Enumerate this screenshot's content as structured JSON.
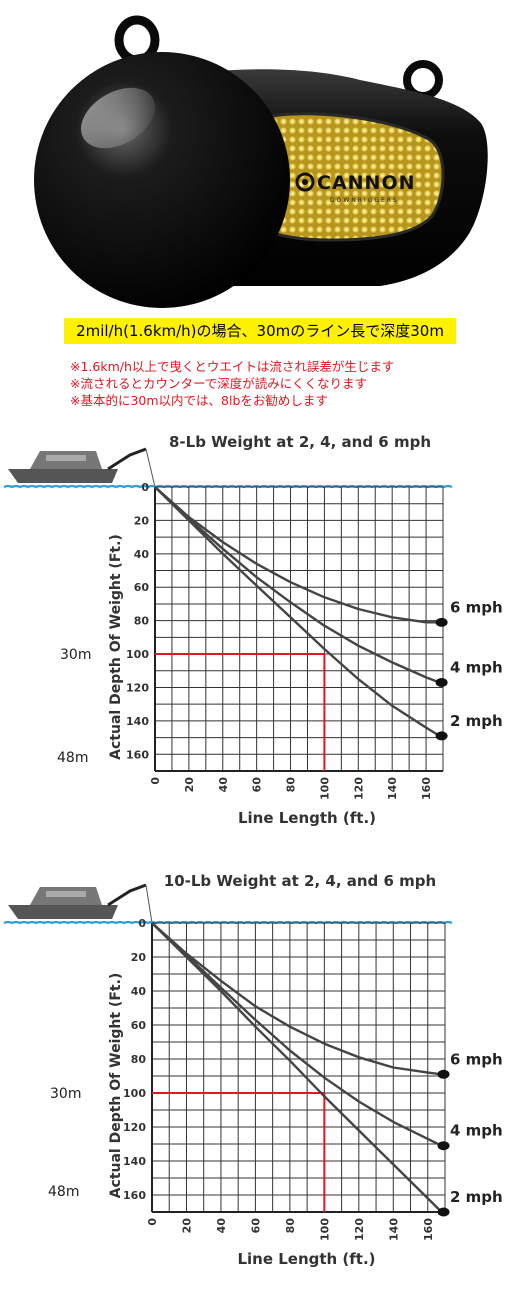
{
  "product": {
    "brand_logo": "CANNON",
    "brand_sub": "DOWNRIGGERS",
    "image_icon": "cannonball-weight-icon"
  },
  "caption": "2mil/h(1.6km/h)の場合、30mのライン長で深度30m",
  "notes": [
    "※1.6km/h以上で曳くとウエイトは流され誤差が生じます",
    "※流されるとカウンターで深度が読みにくくなります",
    "※基本的に30m以内では、8lbをお勧めします"
  ],
  "colors": {
    "caption_bg": "#fff200",
    "notes_text": "#e8141f",
    "water_line": "#2b9fd8",
    "reference_line": "#e8141f",
    "curve": "#444444",
    "grid": "#333333"
  },
  "chart_data": [
    {
      "type": "line",
      "title": "8-Lb Weight at 2, 4, and 6 mph",
      "xlabel": "Line Length (ft.)",
      "ylabel": "Actual Depth Of Weight (Ft.)",
      "xlim": [
        0,
        170
      ],
      "ylim": [
        0,
        170
      ],
      "x_ticks": [
        "0",
        "20",
        "40",
        "60",
        "80",
        "100",
        "120",
        "140",
        "160"
      ],
      "y_ticks": [
        "0",
        "20",
        "40",
        "60",
        "80",
        "100",
        "120",
        "140",
        "160"
      ],
      "y_inverted": true,
      "grid": true,
      "series": [
        {
          "name": "6 mph",
          "x": [
            0,
            20,
            40,
            60,
            80,
            100,
            120,
            140,
            160,
            168
          ],
          "y": [
            0,
            18,
            33,
            46,
            57,
            66,
            73,
            78,
            81,
            81
          ]
        },
        {
          "name": "4 mph",
          "x": [
            0,
            20,
            40,
            60,
            80,
            100,
            120,
            140,
            160,
            168
          ],
          "y": [
            0,
            19,
            37,
            54,
            69,
            83,
            95,
            105,
            114,
            117
          ]
        },
        {
          "name": "2 mph",
          "x": [
            0,
            20,
            40,
            60,
            80,
            100,
            120,
            140,
            160,
            168
          ],
          "y": [
            0,
            20,
            40,
            59,
            78,
            97,
            115,
            131,
            144,
            149
          ]
        }
      ],
      "reference": {
        "x": 100,
        "y": 100,
        "depth_label": "30m"
      },
      "side_labels": [
        "30m",
        "48m"
      ]
    },
    {
      "type": "line",
      "title": "10-Lb Weight at 2, 4, and 6 mph",
      "xlabel": "Line Length (ft.)",
      "ylabel": "Actual Depth Of Weight (Ft.)",
      "xlim": [
        0,
        170
      ],
      "ylim": [
        0,
        170
      ],
      "x_ticks": [
        "0",
        "20",
        "40",
        "60",
        "80",
        "100",
        "120",
        "140",
        "160"
      ],
      "y_ticks": [
        "0",
        "20",
        "40",
        "60",
        "80",
        "100",
        "120",
        "140",
        "160"
      ],
      "y_inverted": true,
      "grid": true,
      "series": [
        {
          "name": "6 mph",
          "x": [
            0,
            20,
            40,
            60,
            80,
            100,
            120,
            140,
            160,
            168
          ],
          "y": [
            0,
            18,
            34,
            49,
            61,
            71,
            79,
            85,
            88,
            89
          ]
        },
        {
          "name": "4 mph",
          "x": [
            0,
            20,
            40,
            60,
            80,
            100,
            120,
            140,
            160,
            168
          ],
          "y": [
            0,
            19,
            38,
            57,
            75,
            91,
            105,
            117,
            127,
            131
          ]
        },
        {
          "name": "2 mph",
          "x": [
            0,
            20,
            40,
            60,
            80,
            100,
            120,
            140,
            160,
            168
          ],
          "y": [
            0,
            20,
            40,
            61,
            81,
            102,
            122,
            142,
            162,
            170
          ]
        }
      ],
      "reference": {
        "x": 100,
        "y": 100,
        "depth_label": "30m"
      },
      "side_labels": [
        "30m",
        "48m"
      ]
    }
  ]
}
